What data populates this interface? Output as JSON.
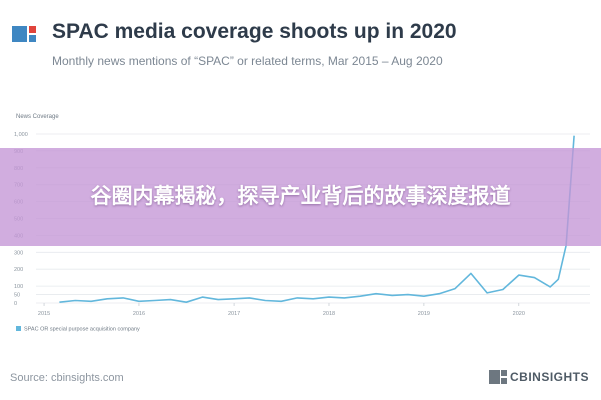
{
  "header": {
    "title": "SPAC media coverage shoots up in 2020",
    "subtitle": "Monthly news mentions of “SPAC” or related terms, Mar 2015 – Aug 2020",
    "logo_icon": "cbinsights-square-logo-icon"
  },
  "overlay": {
    "text": "谷圈内幕揭秘，探寻产业背后的故事深度报道"
  },
  "footer": {
    "source": "Source: cbinsights.com",
    "brand": "CBINSIGHTS",
    "brand_icon": "cbinsights-logo-icon"
  },
  "colors": {
    "line": "#62b7dc",
    "title": "#2e3b4a",
    "grid": "#e6e9ed",
    "overlay": "#c496d6",
    "logo_blue": "#3f87c2",
    "logo_red": "#e0443c"
  },
  "chart_data": {
    "type": "line",
    "ylabel": "News Coverage",
    "ylim": [
      0,
      1000
    ],
    "yticks": [
      0,
      50,
      100,
      200,
      300,
      400,
      500,
      600,
      700,
      800,
      900,
      1000
    ],
    "ytick_labels": [
      "0",
      "50",
      "100",
      "200",
      "300",
      "400",
      "500",
      "600",
      "700",
      "800",
      "900",
      "1,000"
    ],
    "xticks": [
      "2015",
      "2016",
      "2017",
      "2018",
      "2019",
      "2020"
    ],
    "legend": "bottom-left",
    "grid": true,
    "series": [
      {
        "name": "SPAC OR special purpose acquisition company",
        "x": [
          "2015-03",
          "2015-05",
          "2015-07",
          "2015-09",
          "2015-11",
          "2016-01",
          "2016-03",
          "2016-05",
          "2016-07",
          "2016-09",
          "2016-11",
          "2017-01",
          "2017-03",
          "2017-05",
          "2017-07",
          "2017-09",
          "2017-11",
          "2018-01",
          "2018-03",
          "2018-05",
          "2018-07",
          "2018-09",
          "2018-11",
          "2019-01",
          "2019-03",
          "2019-05",
          "2019-07",
          "2019-09",
          "2019-11",
          "2020-01",
          "2020-03",
          "2020-05",
          "2020-06",
          "2020-07",
          "2020-08"
        ],
        "values": [
          5,
          15,
          10,
          25,
          30,
          10,
          15,
          20,
          5,
          35,
          20,
          25,
          30,
          15,
          10,
          30,
          25,
          35,
          30,
          40,
          55,
          45,
          50,
          40,
          55,
          85,
          175,
          60,
          80,
          165,
          150,
          95,
          140,
          340,
          990
        ]
      }
    ]
  }
}
